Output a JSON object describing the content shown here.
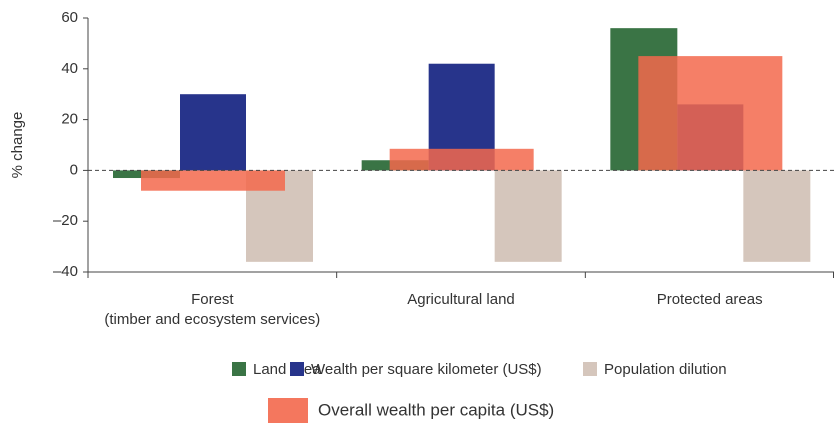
{
  "chart_data": {
    "type": "bar",
    "y_label": "% change",
    "categories": [
      "Forest\n(timber and ecosystem services)",
      "Agricultural land",
      "Protected areas"
    ],
    "series": [
      {
        "name": "Land area",
        "color": "#3a7445",
        "values": [
          -3,
          4,
          56
        ]
      },
      {
        "name": "Wealth per square kilometer (US$)",
        "color": "#27348b",
        "values": [
          30,
          42,
          26
        ]
      },
      {
        "name": "Population dilution",
        "color": "#d5c6bc",
        "values": [
          -36,
          -36,
          -36
        ]
      },
      {
        "name": "Overall wealth per capita (US$)",
        "color": "#f3684c",
        "values": [
          -8,
          8.5,
          45
        ]
      }
    ],
    "ylim": [
      -40,
      60
    ],
    "yticks": [
      {
        "value": -40,
        "label": "–40"
      },
      {
        "value": -20,
        "label": "–20"
      },
      0,
      20,
      40,
      60
    ]
  }
}
